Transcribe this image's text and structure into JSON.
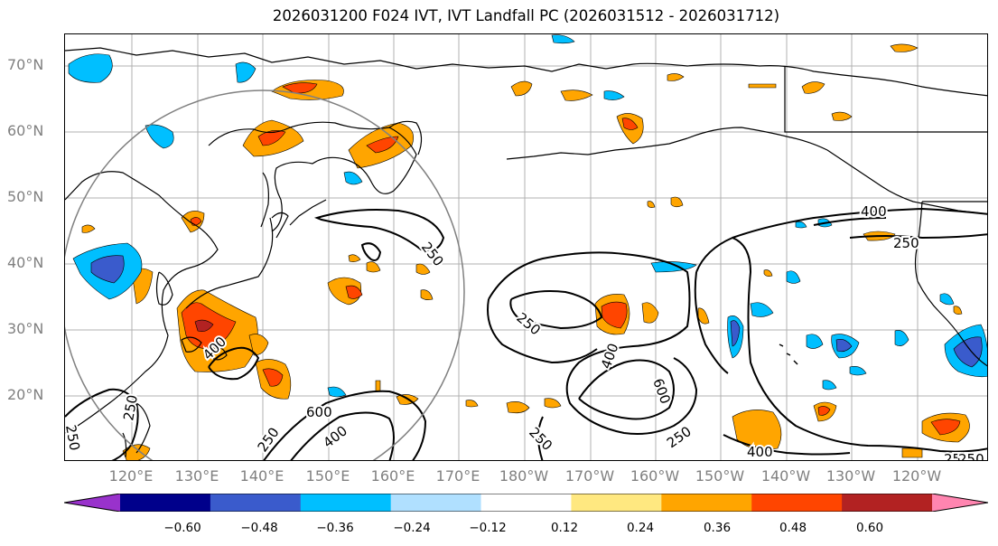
{
  "title": "2026031200 F024 IVT, IVT Landfall PC (2026031512 - 2026031712)",
  "lat_labels": [
    "70°N",
    "60°N",
    "50°N",
    "40°N",
    "30°N",
    "20°N"
  ],
  "lon_labels": [
    "120°E",
    "130°E",
    "140°E",
    "150°E",
    "160°E",
    "170°E",
    "180°W",
    "170°W",
    "160°W",
    "150°W",
    "140°W",
    "130°W",
    "120°W"
  ],
  "contour_labels": [
    "250",
    "400",
    "250",
    "250",
    "600",
    "400",
    "250",
    "250",
    "400",
    "600",
    "250",
    "250",
    "400",
    "400",
    "250",
    "250",
    "250"
  ],
  "colorbar": {
    "ticks": [
      "−0.60",
      "−0.48",
      "−0.36",
      "−0.24",
      "−0.12",
      "0.12",
      "0.24",
      "0.36",
      "0.48",
      "0.60"
    ],
    "colors": [
      "#9932cc",
      "#00008b",
      "#3a5bcc",
      "#00bfff",
      "#b0e0ff",
      "#ffffff",
      "#ffe880",
      "#ffa500",
      "#ff4500",
      "#b22222",
      "#ff85b0"
    ]
  },
  "colors": {
    "land_outline": "#000000",
    "grid": "#b0b0b0",
    "ring": "#808080",
    "axis_label": "#808080"
  }
}
